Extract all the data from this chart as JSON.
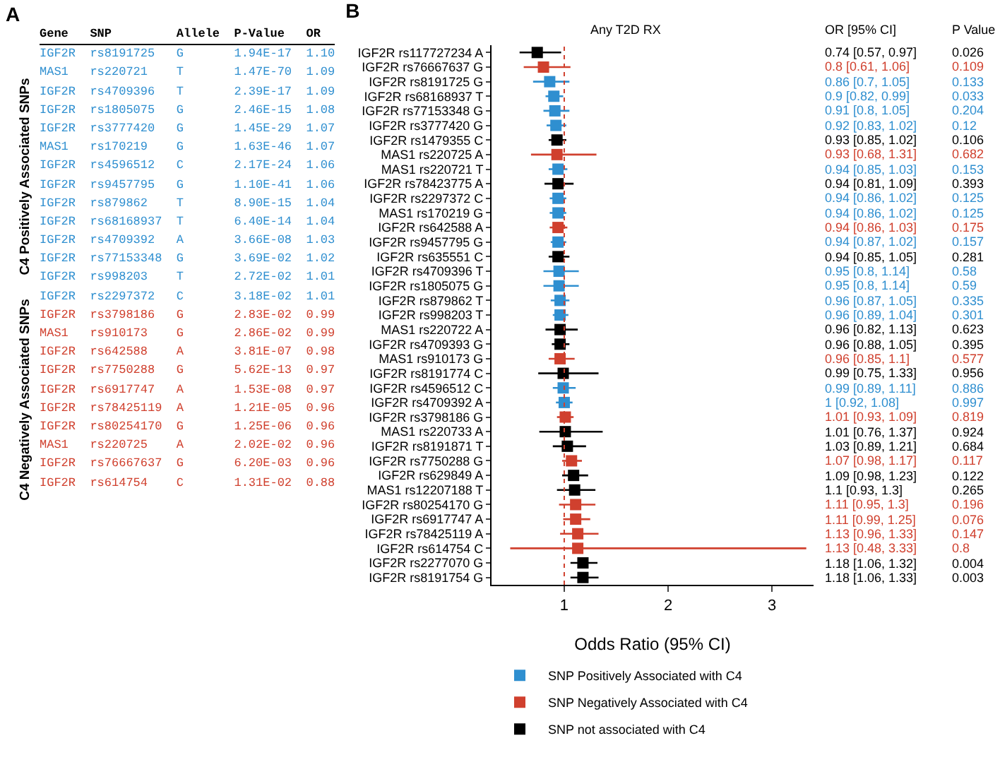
{
  "chart_data": [
    {
      "type": "other",
      "title": "A",
      "colors": [
        "#2f8fd0",
        "#2f8fd0",
        "#2f8fd0",
        "#2f8fd0",
        "#2f8fd0",
        "#2f8fd0",
        "#2f8fd0",
        "#2f8fd0",
        "#2f8fd0",
        "#2f8fd0",
        "#2f8fd0",
        "#2f8fd0",
        "#2f8fd0",
        "#2f8fd0",
        "#d0402e",
        "#d0402e",
        "#d0402e",
        "#d0402e",
        "#d0402e",
        "#d0402e",
        "#d0402e",
        "#d0402e",
        "#d0402e",
        "#d0402e"
      ],
      "annotations": [
        "Gene",
        "SNP",
        "Allele",
        "P-Value",
        "OR",
        "IGF2R",
        "rs8191725",
        "G",
        "1.94E-17",
        "1.10",
        "MAS1",
        "rs220721",
        "T",
        "1.47E-70",
        "1.09",
        "IGF2R",
        "rs4709396",
        "T",
        "2.39E-17",
        "1.09",
        "IGF2R",
        "rs1805075",
        "G",
        "2.46E-15",
        "1.08",
        "IGF2R",
        "rs3777420",
        "G",
        "1.45E-29",
        "1.07",
        "MAS1",
        "rs170219",
        "G",
        "1.63E-46",
        "1.07",
        "IGF2R",
        "rs4596512",
        "C",
        "2.17E-24",
        "1.06",
        "IGF2R",
        "rs9457795",
        "G",
        "1.10E-41",
        "1.06",
        "IGF2R",
        "rs879862",
        "T",
        "8.90E-15",
        "1.04",
        "IGF2R",
        "rs68168937",
        "T",
        "6.40E-14",
        "1.04",
        "IGF2R",
        "rs4709392",
        "A",
        "3.66E-08",
        "1.03",
        "IGF2R",
        "rs77153348",
        "G",
        "3.69E-02",
        "1.02",
        "IGF2R",
        "rs998203",
        "T",
        "2.72E-02",
        "1.01",
        "IGF2R",
        "rs2297372",
        "C",
        "3.18E-02",
        "1.01",
        "IGF2R",
        "rs3798186",
        "G",
        "2.83E-02",
        "0.99",
        "MAS1",
        "rs910173",
        "G",
        "2.86E-02",
        "0.99",
        "IGF2R",
        "rs642588",
        "A",
        "3.81E-07",
        "0.98",
        "IGF2R",
        "rs7750288",
        "G",
        "5.62E-13",
        "0.97",
        "IGF2R",
        "rs6917747",
        "A",
        "1.53E-08",
        "0.97",
        "IGF2R",
        "rs78425119",
        "A",
        "1.21E-05",
        "0.96",
        "IGF2R",
        "rs80254170",
        "G",
        "1.25E-06",
        "0.96",
        "MAS1",
        "rs220725",
        "A",
        "2.02E-02",
        "0.96",
        "IGF2R",
        "rs76667637",
        "G",
        "6.20E-03",
        "0.96",
        "IGF2R",
        "rs614754",
        "C",
        "1.31E-02",
        "0.88",
        "C4 Positively Associated SNPs",
        "C4 Negatively Associated SNPs"
      ]
    },
    {
      "type": "scatter",
      "title": "B",
      "orientation": "horizontal",
      "marker": "square",
      "legend": "bottom",
      "grid": false,
      "xlabel": "Odds Ratio (95% CI)",
      "xlim": [
        0.3,
        3.4
      ],
      "xticks": [
        1,
        2,
        3
      ],
      "ref_lines": [
        {
          "axis": "x",
          "value": 1,
          "color": "#d0402e",
          "line_style": "dotted"
        }
      ],
      "categories": [
        "IGF2R rs117727234 A",
        "IGF2R rs76667637 G",
        "IGF2R rs8191725 G",
        "IGF2R rs68168937 T",
        "IGF2R rs77153348 G",
        "IGF2R rs3777420 G",
        "IGF2R rs1479355 C",
        "MAS1 rs220725 A",
        "MAS1 rs220721 T",
        "IGF2R rs78423775 A",
        "IGF2R rs2297372 C",
        "MAS1 rs170219 G",
        "IGF2R rs642588 A",
        "IGF2R rs9457795 G",
        "IGF2R rs635551 C",
        "IGF2R rs4709396 T",
        "IGF2R rs1805075 G",
        "IGF2R rs879862 T",
        "IGF2R rs998203 T",
        "MAS1 rs220722 A",
        "IGF2R rs4709393 G",
        "MAS1 rs910173 G",
        "IGF2R rs8191774 C",
        "IGF2R rs4596512 C",
        "IGF2R rs4709392 A",
        "IGF2R rs3798186 G",
        "MAS1 rs220733 A",
        "IGF2R rs8191871 T",
        "IGF2R rs7750288 G",
        "IGF2R rs629849 A",
        "MAS1 rs12207188 T",
        "IGF2R rs80254170 G",
        "IGF2R rs6917747 A",
        "IGF2R rs78425119 A",
        "IGF2R rs614754 C",
        "IGF2R rs2277070 G",
        "IGF2R rs8191754 G"
      ],
      "series": [
        {
          "name": "SNP Positively Associated with C4",
          "color": "#2f8fd0",
          "values": [
            null,
            null,
            0.86,
            0.9,
            0.91,
            0.92,
            null,
            null,
            0.94,
            null,
            0.94,
            0.94,
            null,
            0.94,
            null,
            0.95,
            0.95,
            0.96,
            0.96,
            null,
            null,
            null,
            null,
            0.99,
            1,
            null,
            null,
            null,
            null,
            null,
            null,
            null,
            null,
            null,
            null,
            null,
            null
          ],
          "errors": [
            null,
            null,
            [
              0.7,
              1.05
            ],
            [
              0.82,
              0.99
            ],
            [
              0.8,
              1.05
            ],
            [
              0.83,
              1.02
            ],
            null,
            null,
            [
              0.85,
              1.03
            ],
            null,
            [
              0.86,
              1.02
            ],
            [
              0.86,
              1.02
            ],
            null,
            [
              0.87,
              1.02
            ],
            null,
            [
              0.8,
              1.14
            ],
            [
              0.8,
              1.14
            ],
            [
              0.87,
              1.05
            ],
            [
              0.89,
              1.04
            ],
            null,
            null,
            null,
            null,
            [
              0.89,
              1.11
            ],
            [
              0.92,
              1.08
            ],
            null,
            null,
            null,
            null,
            null,
            null,
            null,
            null,
            null,
            null,
            null,
            null
          ]
        },
        {
          "name": "SNP Negatively Associated with C4",
          "color": "#d0402e",
          "values": [
            null,
            0.8,
            null,
            null,
            null,
            null,
            null,
            0.93,
            null,
            null,
            null,
            null,
            0.94,
            null,
            null,
            null,
            null,
            null,
            null,
            null,
            null,
            0.96,
            null,
            null,
            null,
            1.01,
            null,
            null,
            1.07,
            null,
            null,
            1.11,
            1.11,
            1.13,
            1.13,
            null,
            null
          ],
          "errors": [
            null,
            [
              0.61,
              1.06
            ],
            null,
            null,
            null,
            null,
            null,
            [
              0.68,
              1.31
            ],
            null,
            null,
            null,
            null,
            [
              0.86,
              1.03
            ],
            null,
            null,
            null,
            null,
            null,
            null,
            null,
            null,
            [
              0.85,
              1.1
            ],
            null,
            null,
            null,
            [
              0.93,
              1.09
            ],
            null,
            null,
            [
              0.98,
              1.17
            ],
            null,
            null,
            [
              0.95,
              1.3
            ],
            [
              0.99,
              1.25
            ],
            [
              0.96,
              1.33
            ],
            [
              0.48,
              3.33
            ],
            null,
            null
          ]
        },
        {
          "name": "SNP not associated with C4",
          "color": "#000000",
          "values": [
            0.74,
            null,
            null,
            null,
            null,
            null,
            0.93,
            null,
            null,
            0.94,
            null,
            null,
            null,
            null,
            0.94,
            null,
            null,
            null,
            null,
            0.96,
            0.96,
            null,
            0.99,
            null,
            null,
            null,
            1.01,
            1.03,
            null,
            1.09,
            1.1,
            null,
            null,
            null,
            null,
            1.18,
            1.18
          ],
          "errors": [
            [
              0.57,
              0.97
            ],
            null,
            null,
            null,
            null,
            null,
            [
              0.85,
              1.02
            ],
            null,
            null,
            [
              0.81,
              1.09
            ],
            null,
            null,
            null,
            null,
            [
              0.85,
              1.05
            ],
            null,
            null,
            null,
            null,
            [
              0.82,
              1.13
            ],
            [
              0.88,
              1.05
            ],
            null,
            [
              0.75,
              1.33
            ],
            null,
            null,
            null,
            [
              0.76,
              1.37
            ],
            [
              0.89,
              1.21
            ],
            null,
            [
              0.98,
              1.23
            ],
            [
              0.93,
              1.3
            ],
            null,
            null,
            null,
            null,
            [
              1.06,
              1.32
            ],
            [
              1.06,
              1.33
            ]
          ]
        }
      ],
      "annotations": [
        "Any T2D RX",
        "OR [95% CI]",
        "P Value",
        "0.74 [0.57, 0.97]",
        "0.8 [0.61, 1.06]",
        "0.86 [0.7, 1.05]",
        "0.9 [0.82, 0.99]",
        "0.91 [0.8, 1.05]",
        "0.92 [0.83, 1.02]",
        "0.93 [0.85, 1.02]",
        "0.93 [0.68, 1.31]",
        "0.94 [0.85, 1.03]",
        "0.94 [0.81, 1.09]",
        "0.94 [0.86, 1.02]",
        "0.94 [0.86, 1.02]",
        "0.94 [0.86, 1.03]",
        "0.94 [0.87, 1.02]",
        "0.94 [0.85, 1.05]",
        "0.95 [0.8, 1.14]",
        "0.95 [0.8, 1.14]",
        "0.96 [0.87, 1.05]",
        "0.96 [0.89, 1.04]",
        "0.96 [0.82, 1.13]",
        "0.96 [0.88, 1.05]",
        "0.96 [0.85, 1.1]",
        "0.99 [0.75, 1.33]",
        "0.99 [0.89, 1.11]",
        "1 [0.92, 1.08]",
        "1.01 [0.93, 1.09]",
        "1.01 [0.76, 1.37]",
        "1.03 [0.89, 1.21]",
        "1.07 [0.98, 1.17]",
        "1.09 [0.98, 1.23]",
        "1.1 [0.93, 1.3]",
        "1.11 [0.95, 1.3]",
        "1.11 [0.99, 1.25]",
        "1.13 [0.96, 1.33]",
        "1.13 [0.48, 3.33]",
        "1.18 [1.06, 1.32]",
        "1.18 [1.06, 1.33]",
        "0.026",
        "0.109",
        "0.133",
        "0.033",
        "0.204",
        "0.12",
        "0.106",
        "0.682",
        "0.153",
        "0.393",
        "0.125",
        "0.125",
        "0.175",
        "0.157",
        "0.281",
        "0.58",
        "0.59",
        "0.335",
        "0.301",
        "0.623",
        "0.395",
        "0.577",
        "0.956",
        "0.886",
        "0.997",
        "0.819",
        "0.924",
        "0.684",
        "0.117",
        "0.122",
        "0.265",
        "0.196",
        "0.076",
        "0.147",
        "0.8",
        "0.004",
        "0.003"
      ]
    }
  ]
}
